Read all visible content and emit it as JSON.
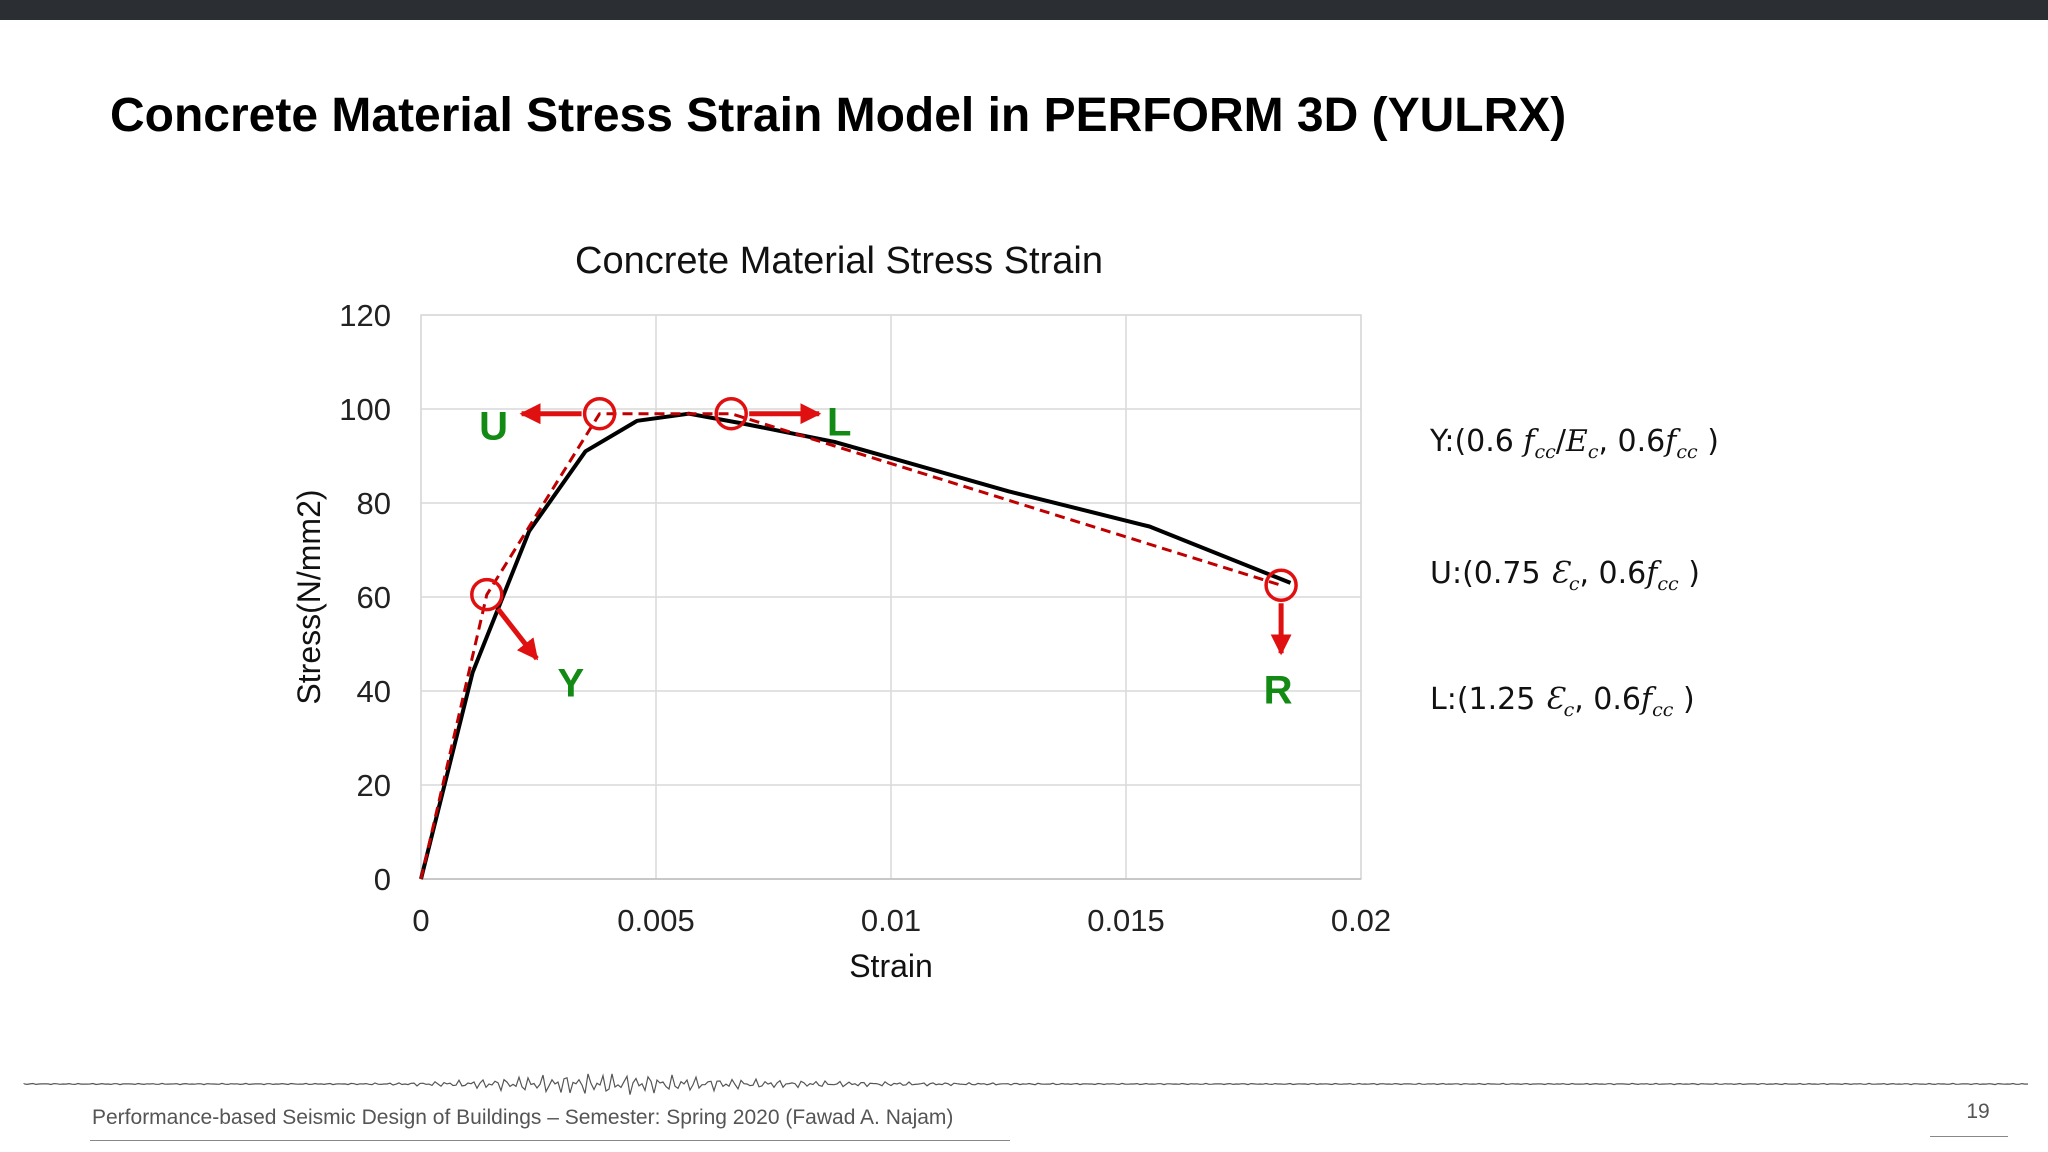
{
  "slide": {
    "title": "Concrete Material Stress Strain Model in PERFORM 3D (YULRX)",
    "footer": "Performance-based Seismic Design of Buildings – Semester: Spring 2020 (Fawad A. Najam)",
    "page_number": "19"
  },
  "chart_data": {
    "type": "line",
    "title": "Concrete Material Stress Strain",
    "xlabel": "Strain",
    "ylabel": "Stress(N/mm2)",
    "xlim": [
      0,
      0.02
    ],
    "ylim": [
      0,
      120
    ],
    "x_ticks": [
      0,
      0.005,
      0.01,
      0.015,
      0.02
    ],
    "x_tick_labels": [
      "0",
      "0.005",
      "0.01",
      "0.015",
      "0.02"
    ],
    "y_ticks": [
      0,
      20,
      40,
      60,
      80,
      100,
      120
    ],
    "y_tick_labels": [
      "0",
      "20",
      "40",
      "60",
      "80",
      "100",
      "120"
    ],
    "grid": true,
    "series": [
      {
        "color": "#000000",
        "style": "solid",
        "points": [
          [
            0,
            0
          ],
          [
            0.0011,
            44
          ],
          [
            0.0023,
            74
          ],
          [
            0.0035,
            91
          ],
          [
            0.0046,
            97.5
          ],
          [
            0.0057,
            99
          ],
          [
            0.0068,
            97
          ],
          [
            0.0088,
            93
          ],
          [
            0.0125,
            82.5
          ],
          [
            0.0155,
            75
          ],
          [
            0.0185,
            63
          ]
        ]
      },
      {
        "color": "#c00000",
        "style": "dashed",
        "points": [
          [
            0,
            0
          ],
          [
            0.0014,
            60.5
          ],
          [
            0.0038,
            99
          ],
          [
            0.0066,
            99
          ],
          [
            0.0183,
            62.5
          ]
        ]
      }
    ],
    "annotations": [
      {
        "label": "Y",
        "point": [
          0.0014,
          60.5
        ],
        "arrow_dir": [
          50,
          64
        ],
        "label_offset": [
          84,
          88
        ]
      },
      {
        "label": "U",
        "point": [
          0.0038,
          99
        ],
        "arrow_dir": [
          -78,
          0
        ],
        "label_offset": [
          -106,
          12
        ]
      },
      {
        "label": "L",
        "point": [
          0.0066,
          99
        ],
        "arrow_dir": [
          88,
          0
        ],
        "label_offset": [
          108,
          8
        ]
      },
      {
        "label": "R",
        "point": [
          0.0183,
          62.5
        ],
        "arrow_dir": [
          0,
          68
        ],
        "label_offset": [
          -3,
          104
        ]
      }
    ],
    "colors": {
      "marker": "#e01010",
      "label": "#138a13",
      "grid": "#d9d9d9",
      "axis_text": "#222222"
    }
  }
}
